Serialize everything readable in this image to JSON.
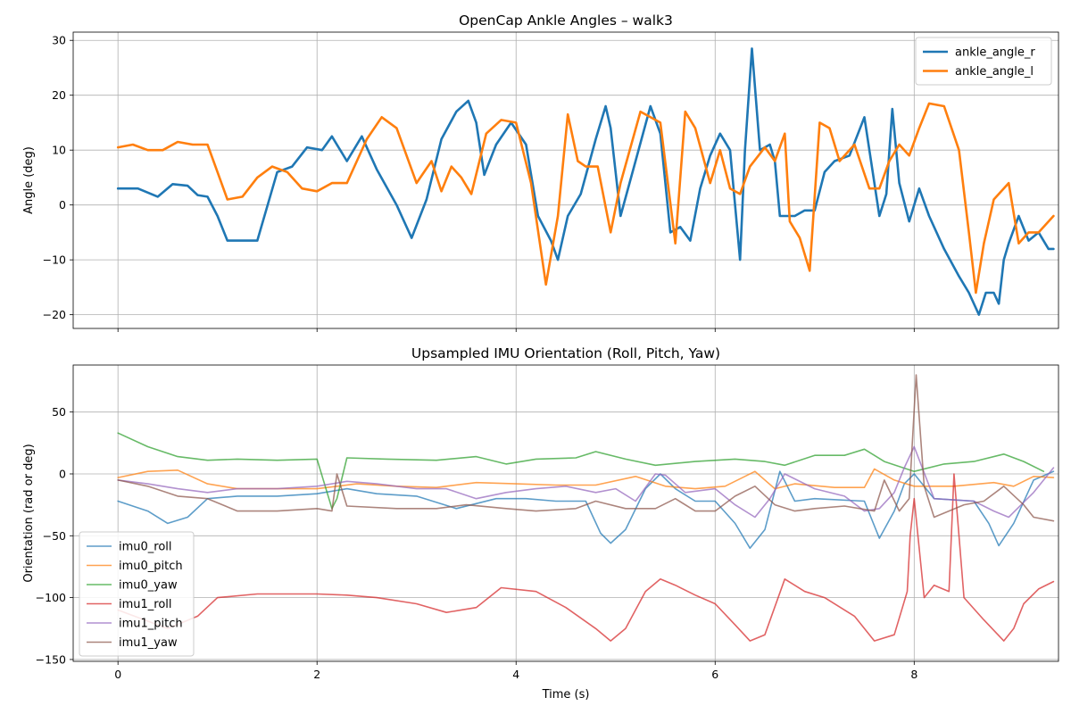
{
  "chart_data": [
    {
      "type": "line",
      "title": "OpenCap Ankle Angles – walk3",
      "xlabel": "",
      "ylabel": "Angle (deg)",
      "xlim": [
        -0.45,
        9.45
      ],
      "ylim": [
        -22.5,
        31.5
      ],
      "xticks": [
        0,
        2,
        4,
        6,
        8
      ],
      "show_xtick_labels": false,
      "yticks": [
        -20,
        -10,
        0,
        10,
        20,
        30
      ],
      "grid": true,
      "legend": "top-right",
      "legend_entries": [
        "ankle_angle_r",
        "ankle_angle_l"
      ],
      "series": [
        {
          "name": "ankle_angle_r",
          "color": "#1f77b4",
          "x": [
            0,
            0.2,
            0.4,
            0.55,
            0.7,
            0.8,
            0.9,
            1.0,
            1.1,
            1.25,
            1.4,
            1.6,
            1.75,
            1.9,
            2.05,
            2.15,
            2.3,
            2.45,
            2.6,
            2.8,
            2.95,
            3.1,
            3.25,
            3.4,
            3.52,
            3.6,
            3.68,
            3.8,
            3.95,
            4.1,
            4.22,
            4.35,
            4.42,
            4.52,
            4.65,
            4.8,
            4.9,
            4.95,
            5.05,
            5.2,
            5.35,
            5.45,
            5.55,
            5.65,
            5.75,
            5.85,
            5.95,
            6.05,
            6.15,
            6.25,
            6.3,
            6.37,
            6.45,
            6.55,
            6.6,
            6.65,
            6.7,
            6.8,
            6.9,
            7.0,
            7.1,
            7.2,
            7.35,
            7.5,
            7.65,
            7.72,
            7.78,
            7.85,
            7.95,
            8.05,
            8.15,
            8.3,
            8.45,
            8.55,
            8.65,
            8.72,
            8.8,
            8.85,
            8.9,
            8.95,
            9.05,
            9.15,
            9.25,
            9.35,
            9.4
          ],
          "y": [
            3,
            3,
            1.5,
            3.8,
            3.5,
            1.8,
            1.5,
            -2,
            -6.5,
            -6.5,
            -6.5,
            6,
            7,
            10.5,
            10,
            12.5,
            8,
            12.5,
            6.5,
            0,
            -6,
            1,
            12,
            17,
            19,
            15,
            5.5,
            11,
            15,
            11,
            -2,
            -6.5,
            -10,
            -2,
            2,
            12,
            18,
            14,
            -2,
            8,
            18,
            13,
            -5,
            -4,
            -6.5,
            3,
            9,
            13,
            10,
            -10,
            10,
            28.5,
            10,
            11,
            8,
            -2,
            -2,
            -2,
            -1,
            -1,
            6,
            8,
            9,
            16,
            -2,
            2,
            17.5,
            4,
            -3,
            3,
            -2,
            -8,
            -13,
            -16,
            -20,
            -16,
            -16,
            -18,
            -10,
            -7,
            -2,
            -6.5,
            -5,
            -8,
            -8
          ]
        },
        {
          "name": "ankle_angle_l",
          "color": "#ff7f0e",
          "x": [
            0,
            0.15,
            0.3,
            0.45,
            0.6,
            0.75,
            0.9,
            1.0,
            1.1,
            1.25,
            1.4,
            1.55,
            1.7,
            1.85,
            2.0,
            2.15,
            2.3,
            2.5,
            2.65,
            2.8,
            3.0,
            3.15,
            3.25,
            3.35,
            3.45,
            3.55,
            3.7,
            3.85,
            4.0,
            4.15,
            4.3,
            4.42,
            4.52,
            4.62,
            4.7,
            4.82,
            4.95,
            5.05,
            5.25,
            5.45,
            5.6,
            5.7,
            5.8,
            5.95,
            6.05,
            6.15,
            6.25,
            6.35,
            6.5,
            6.6,
            6.7,
            6.75,
            6.85,
            6.95,
            7.05,
            7.15,
            7.25,
            7.4,
            7.55,
            7.65,
            7.75,
            7.85,
            7.95,
            8.05,
            8.15,
            8.3,
            8.45,
            8.55,
            8.62,
            8.7,
            8.8,
            8.95,
            9.05,
            9.15,
            9.25,
            9.4
          ],
          "y": [
            10.5,
            11,
            10,
            10,
            11.5,
            11,
            11,
            6,
            1,
            1.5,
            5,
            7,
            6,
            3,
            2.5,
            4,
            4,
            12,
            16,
            14,
            4,
            8,
            2.5,
            7,
            5,
            2,
            13,
            15.5,
            15,
            4,
            -14.5,
            -2,
            16.5,
            8,
            7,
            7,
            -5,
            4,
            17,
            15,
            -7,
            17,
            14,
            4,
            10,
            3,
            2,
            7,
            10.5,
            8,
            13,
            -3,
            -6,
            -12,
            15,
            14,
            8,
            11,
            3,
            3,
            8,
            11,
            9,
            14,
            18.5,
            18,
            10,
            -5,
            -16,
            -7,
            1,
            4,
            -7,
            -5,
            -5,
            -2
          ]
        }
      ]
    },
    {
      "type": "line",
      "title": "Upsampled IMU Orientation (Roll, Pitch, Yaw)",
      "xlabel": "Time (s)",
      "ylabel": "Orientation (rad or deg)",
      "xlim": [
        -0.45,
        9.45
      ],
      "ylim": [
        -151.5,
        88
      ],
      "xticks": [
        0,
        2,
        4,
        6,
        8
      ],
      "yticks": [
        -150,
        -100,
        -50,
        0,
        50
      ],
      "grid": true,
      "legend": "lower-left",
      "legend_entries": [
        "imu0_roll",
        "imu0_pitch",
        "imu0_yaw",
        "imu1_roll",
        "imu1_pitch",
        "imu1_yaw"
      ],
      "series": [
        {
          "name": "imu0_roll",
          "color": "#1f77b4",
          "x": [
            0,
            0.3,
            0.5,
            0.7,
            0.9,
            1.2,
            1.6,
            2.0,
            2.3,
            2.6,
            3.0,
            3.4,
            3.8,
            4.1,
            4.4,
            4.7,
            4.85,
            4.95,
            5.1,
            5.3,
            5.45,
            5.6,
            5.8,
            6.0,
            6.2,
            6.35,
            6.5,
            6.65,
            6.8,
            7.0,
            7.5,
            7.65,
            7.8,
            7.9,
            8.0,
            8.2,
            8.6,
            8.75,
            8.85,
            9.0,
            9.2,
            9.4
          ],
          "y": [
            -22,
            -30,
            -40,
            -35,
            -20,
            -18,
            -18,
            -16,
            -12,
            -16,
            -18,
            -28,
            -20,
            -20,
            -22,
            -22,
            -48,
            -56,
            -45,
            -12,
            0,
            -12,
            -22,
            -22,
            -40,
            -60,
            -45,
            2,
            -22,
            -20,
            -22,
            -52,
            -30,
            -8,
            0,
            -20,
            -22,
            -40,
            -58,
            -40,
            -5,
            2
          ]
        },
        {
          "name": "imu0_pitch",
          "color": "#ff7f0e",
          "x": [
            0,
            0.3,
            0.6,
            0.9,
            1.2,
            1.6,
            2.0,
            2.4,
            2.8,
            3.2,
            3.6,
            4.0,
            4.4,
            4.8,
            5.2,
            5.5,
            5.8,
            6.1,
            6.4,
            6.6,
            6.8,
            7.2,
            7.5,
            7.6,
            7.8,
            8.0,
            8.4,
            8.8,
            9.0,
            9.2,
            9.4
          ],
          "y": [
            -3,
            2,
            3,
            -8,
            -12,
            -12,
            -12,
            -8,
            -10,
            -11,
            -7,
            -8,
            -9,
            -9,
            -2,
            -10,
            -12,
            -10,
            2,
            -12,
            -8,
            -11,
            -11,
            4,
            -5,
            -10,
            -10,
            -7,
            -10,
            -2,
            -3
          ]
        },
        {
          "name": "imu0_yaw",
          "color": "#2ca02c",
          "x": [
            0,
            0.3,
            0.6,
            0.9,
            1.2,
            1.6,
            2.0,
            2.15,
            2.2,
            2.3,
            2.7,
            3.2,
            3.6,
            3.9,
            4.2,
            4.6,
            4.8,
            5.1,
            5.4,
            5.8,
            6.2,
            6.5,
            6.7,
            7.0,
            7.3,
            7.5,
            7.7,
            8.0,
            8.3,
            8.6,
            8.9,
            9.1,
            9.3
          ],
          "y": [
            33,
            22,
            14,
            11,
            12,
            11,
            12,
            -28,
            -20,
            13,
            12,
            11,
            14,
            8,
            12,
            13,
            18,
            12,
            7,
            10,
            12,
            10,
            7,
            15,
            15,
            20,
            10,
            2,
            8,
            10,
            16,
            10,
            2
          ]
        },
        {
          "name": "imu1_roll",
          "color": "#d62728",
          "x": [
            0,
            0.5,
            0.8,
            1.0,
            1.4,
            2.0,
            2.3,
            2.6,
            3.0,
            3.3,
            3.6,
            3.85,
            4.2,
            4.5,
            4.8,
            4.95,
            5.1,
            5.3,
            5.45,
            5.6,
            5.8,
            6.0,
            6.2,
            6.35,
            6.5,
            6.7,
            6.9,
            7.1,
            7.4,
            7.6,
            7.8,
            7.93,
            7.96,
            8.0,
            8.1,
            8.2,
            8.35,
            8.4,
            8.45,
            8.5,
            8.7,
            8.9,
            9.0,
            9.1,
            9.25,
            9.4
          ],
          "y": [
            -110,
            -125,
            -115,
            -100,
            -97,
            -97,
            -98,
            -100,
            -105,
            -112,
            -108,
            -92,
            -95,
            -108,
            -125,
            -135,
            -125,
            -95,
            -85,
            -90,
            -98,
            -105,
            -122,
            -135,
            -130,
            -85,
            -95,
            -100,
            -115,
            -135,
            -130,
            -95,
            -50,
            -20,
            -100,
            -90,
            -95,
            0,
            -50,
            -100,
            -118,
            -135,
            -125,
            -105,
            -93,
            -87
          ]
        },
        {
          "name": "imu1_pitch",
          "color": "#9467bd",
          "x": [
            0,
            0.3,
            0.6,
            0.9,
            1.2,
            1.6,
            2.0,
            2.3,
            2.6,
            3.0,
            3.3,
            3.6,
            3.9,
            4.2,
            4.5,
            4.8,
            5.0,
            5.2,
            5.4,
            5.5,
            5.7,
            6.0,
            6.2,
            6.4,
            6.55,
            6.7,
            7.0,
            7.3,
            7.5,
            7.65,
            7.8,
            7.9,
            8.0,
            8.2,
            8.6,
            8.8,
            8.95,
            9.2,
            9.4
          ],
          "y": [
            -5,
            -8,
            -12,
            -15,
            -12,
            -12,
            -10,
            -6,
            -8,
            -12,
            -12,
            -20,
            -15,
            -12,
            -10,
            -15,
            -12,
            -22,
            0,
            -1,
            -15,
            -12,
            -25,
            -35,
            -20,
            0,
            -12,
            -18,
            -30,
            -28,
            -15,
            5,
            22,
            -20,
            -22,
            -30,
            -35,
            -15,
            5
          ]
        },
        {
          "name": "imu1_yaw",
          "color": "#8c564b",
          "x": [
            0,
            0.3,
            0.6,
            0.9,
            1.2,
            1.6,
            2.0,
            2.15,
            2.2,
            2.3,
            2.8,
            3.2,
            3.5,
            3.9,
            4.2,
            4.6,
            4.8,
            5.1,
            5.4,
            5.6,
            5.8,
            6.0,
            6.2,
            6.4,
            6.6,
            6.8,
            7.0,
            7.3,
            7.6,
            7.7,
            7.85,
            7.95,
            8.02,
            8.1,
            8.2,
            8.5,
            8.7,
            8.9,
            9.1,
            9.2,
            9.4
          ],
          "y": [
            -5,
            -10,
            -18,
            -20,
            -30,
            -30,
            -28,
            -30,
            0,
            -26,
            -28,
            -28,
            -25,
            -28,
            -30,
            -28,
            -22,
            -28,
            -28,
            -20,
            -30,
            -30,
            -18,
            -10,
            -25,
            -30,
            -28,
            -26,
            -30,
            -5,
            -30,
            -20,
            80,
            -10,
            -35,
            -25,
            -22,
            -10,
            -25,
            -35,
            -38
          ]
        }
      ]
    }
  ]
}
